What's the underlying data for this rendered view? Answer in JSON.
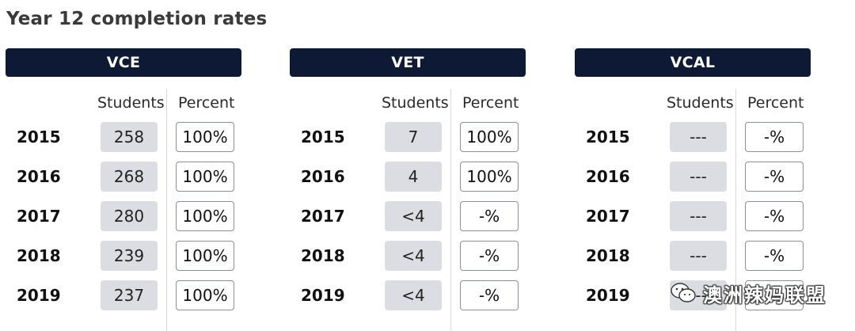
{
  "title": "Year 12 completion rates",
  "column_headers": {
    "students": "Students",
    "percent": "Percent"
  },
  "panels": [
    {
      "header": "VCE",
      "rows": [
        {
          "year": "2015",
          "students": "258",
          "percent": "100%"
        },
        {
          "year": "2016",
          "students": "268",
          "percent": "100%"
        },
        {
          "year": "2017",
          "students": "280",
          "percent": "100%"
        },
        {
          "year": "2018",
          "students": "239",
          "percent": "100%"
        },
        {
          "year": "2019",
          "students": "237",
          "percent": "100%"
        }
      ]
    },
    {
      "header": "VET",
      "rows": [
        {
          "year": "2015",
          "students": "7",
          "percent": "100%"
        },
        {
          "year": "2016",
          "students": "4",
          "percent": "100%"
        },
        {
          "year": "2017",
          "students": "<4",
          "percent": "-%"
        },
        {
          "year": "2018",
          "students": "<4",
          "percent": "-%"
        },
        {
          "year": "2019",
          "students": "<4",
          "percent": "-%"
        }
      ]
    },
    {
      "header": "VCAL",
      "rows": [
        {
          "year": "2015",
          "students": "---",
          "percent": "-%"
        },
        {
          "year": "2016",
          "students": "---",
          "percent": "-%"
        },
        {
          "year": "2017",
          "students": "---",
          "percent": "-%"
        },
        {
          "year": "2018",
          "students": "---",
          "percent": "-%"
        },
        {
          "year": "2019",
          "students": "---",
          "percent": "-%"
        }
      ]
    }
  ],
  "watermark": {
    "text": "澳洲辣妈联盟",
    "icon": "wechat-icon"
  },
  "colors": {
    "header_bg": "#0e1a35",
    "students_box_bg": "#dcdde2",
    "percent_box_border": "#8a8f99"
  }
}
